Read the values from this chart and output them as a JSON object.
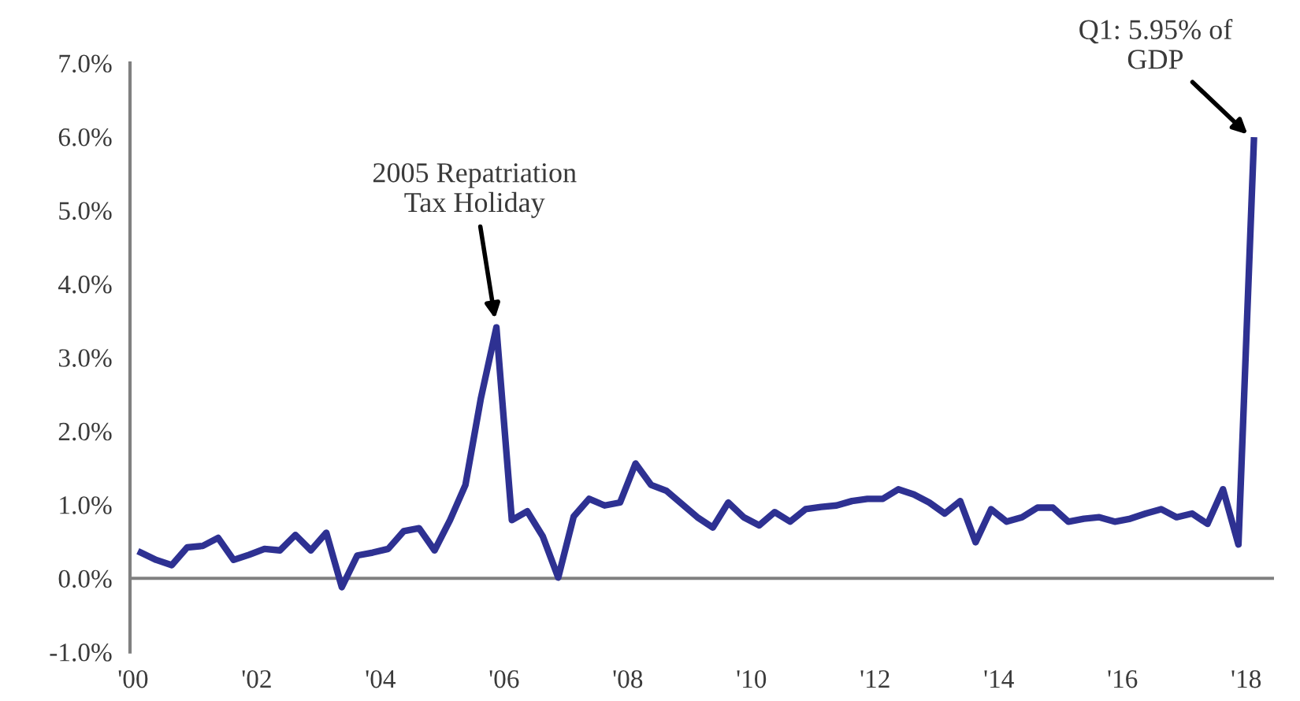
{
  "chart_data": {
    "type": "line",
    "x": [
      2000.125,
      2000.375,
      2000.625,
      2000.875,
      2001.125,
      2001.375,
      2001.625,
      2001.875,
      2002.125,
      2002.375,
      2002.625,
      2002.875,
      2003.125,
      2003.375,
      2003.625,
      2003.875,
      2004.125,
      2004.375,
      2004.625,
      2004.875,
      2005.125,
      2005.375,
      2005.625,
      2005.875,
      2006.125,
      2006.375,
      2006.625,
      2006.875,
      2007.125,
      2007.375,
      2007.625,
      2007.875,
      2008.125,
      2008.375,
      2008.625,
      2008.875,
      2009.125,
      2009.375,
      2009.625,
      2009.875,
      2010.125,
      2010.375,
      2010.625,
      2010.875,
      2011.125,
      2011.375,
      2011.625,
      2011.875,
      2012.125,
      2012.375,
      2012.625,
      2012.875,
      2013.125,
      2013.375,
      2013.625,
      2013.875,
      2014.125,
      2014.375,
      2014.625,
      2014.875,
      2015.125,
      2015.375,
      2015.625,
      2015.875,
      2016.125,
      2016.375,
      2016.625,
      2016.875,
      2017.125,
      2017.375,
      2017.625,
      2017.875,
      2018.125
    ],
    "series": [
      {
        "color": "#2e3192",
        "values": [
          0.35,
          0.25,
          0.18,
          0.42,
          0.44,
          0.55,
          0.25,
          0.32,
          0.4,
          0.38,
          0.59,
          0.38,
          0.62,
          -0.12,
          0.31,
          0.35,
          0.4,
          0.64,
          0.68,
          0.38,
          0.79,
          1.27,
          2.45,
          3.41,
          0.79,
          0.91,
          0.57,
          0.01,
          0.84,
          1.08,
          0.99,
          1.03,
          1.56,
          1.27,
          1.19,
          1.01,
          0.83,
          0.69,
          1.03,
          0.83,
          0.72,
          0.9,
          0.77,
          0.94,
          0.97,
          0.99,
          1.05,
          1.08,
          1.08,
          1.21,
          1.14,
          1.03,
          0.88,
          1.05,
          0.49,
          0.94,
          0.77,
          0.83,
          0.96,
          0.96,
          0.77,
          0.81,
          0.83,
          0.77,
          0.81,
          0.88,
          0.94,
          0.83,
          0.88,
          0.74,
          1.21,
          0.46,
          5.95
        ]
      }
    ],
    "xlim": [
      1999.95,
      2018.45
    ],
    "xticks": [
      {
        "value": 2000,
        "label": "'00"
      },
      {
        "value": 2002,
        "label": "'02"
      },
      {
        "value": 2004,
        "label": "'04"
      },
      {
        "value": 2006,
        "label": "'06"
      },
      {
        "value": 2008,
        "label": "'08"
      },
      {
        "value": 2010,
        "label": "'10"
      },
      {
        "value": 2012,
        "label": "'12"
      },
      {
        "value": 2014,
        "label": "'14"
      },
      {
        "value": 2016,
        "label": "'16"
      },
      {
        "value": 2018,
        "label": "'18"
      }
    ],
    "ylim": [
      -1,
      7
    ],
    "yticks": [
      {
        "value": -1,
        "label": "-1.0%"
      },
      {
        "value": 0,
        "label": "0.0%"
      },
      {
        "value": 1,
        "label": "1.0%"
      },
      {
        "value": 2,
        "label": "2.0%"
      },
      {
        "value": 3,
        "label": "3.0%"
      },
      {
        "value": 4,
        "label": "4.0%"
      },
      {
        "value": 5,
        "label": "5.0%"
      },
      {
        "value": 6,
        "label": "6.0%"
      },
      {
        "value": 7,
        "label": "7.0%"
      }
    ],
    "ref_lines": [
      {
        "axis": "y",
        "value": 0,
        "color": "#808080"
      }
    ],
    "annotations": [
      {
        "text": "2005 Repatriation\nTax Holiday",
        "x": 2005.875,
        "y": 3.41
      },
      {
        "text": "Q1: 5.95% of\nGDP",
        "x": 2018.125,
        "y": 5.95
      }
    ],
    "grid": false,
    "legend": false,
    "marker": "none",
    "line_style": "solid"
  }
}
